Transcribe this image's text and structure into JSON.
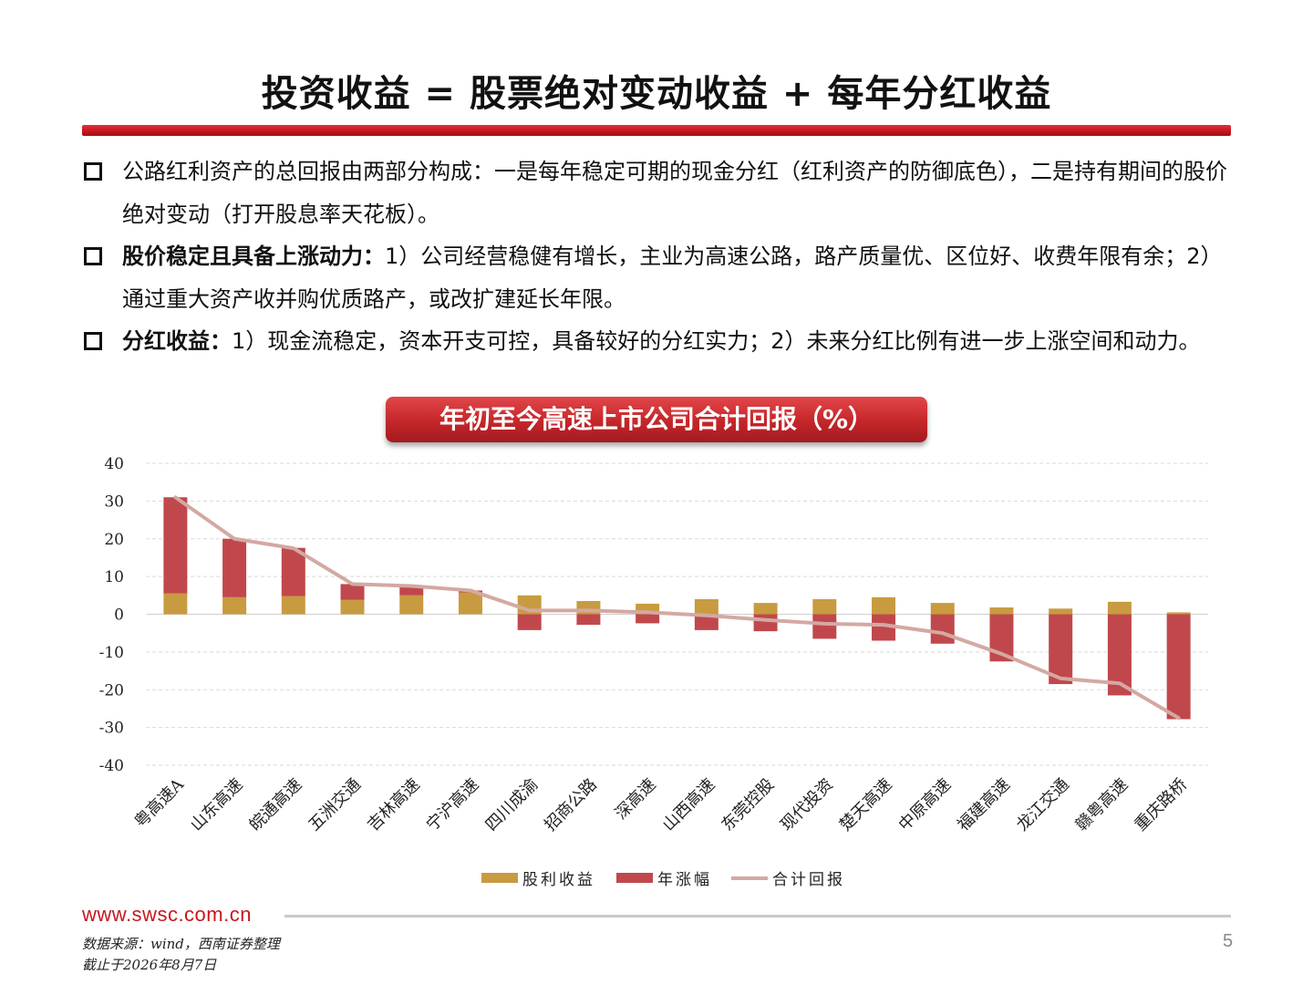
{
  "title": "投资收益 = 股票绝对变动收益 + 每年分红收益",
  "bullets": [
    {
      "bold": "",
      "text": "公路红利资产的总回报由两部分构成：一是每年稳定可期的现金分红（红利资产的防御底色），二是持有期间的股价绝对变动（打开股息率天花板）。"
    },
    {
      "bold": "股价稳定且具备上涨动力：",
      "text": "1）公司经营稳健有增长，主业为高速公路，路产质量优、区位好、收费年限有余；2）通过重大资产收并购优质路产，或改扩建延长年限。"
    },
    {
      "bold": "分红收益：",
      "text": "1）现金流稳定，资本开支可控，具备较好的分红实力；2）未来分红比例有进一步上涨空间和动力。"
    }
  ],
  "chart_banner": "年初至今高速上市公司合计回报（%）",
  "chart_data": {
    "type": "bar",
    "stacked": true,
    "categories": [
      "粤高速A",
      "山东高速",
      "皖通高速",
      "五洲交通",
      "吉林高速",
      "宁沪高速",
      "四川成渝",
      "招商公路",
      "深高速",
      "山西高速",
      "东莞控股",
      "现代投资",
      "楚天高速",
      "中原高速",
      "福建高速",
      "龙江交通",
      "赣粤高速",
      "重庆路桥"
    ],
    "series": [
      {
        "name": "股利收益",
        "type": "bar",
        "color": "#c89b40",
        "values": [
          5.5,
          4.5,
          4.8,
          3.8,
          5.0,
          5.8,
          5.0,
          3.5,
          2.8,
          4.0,
          3.0,
          4.0,
          4.5,
          3.0,
          1.8,
          1.5,
          3.3,
          0.5
        ]
      },
      {
        "name": "年涨幅",
        "type": "bar",
        "color": "#c0484c",
        "values": [
          25.5,
          15.5,
          12.8,
          4.2,
          2.5,
          0.5,
          -4.2,
          -2.8,
          -2.4,
          -4.2,
          -4.5,
          -6.5,
          -7.0,
          -7.8,
          -12.5,
          -18.5,
          -21.5,
          -27.8
        ]
      },
      {
        "name": "合计回报",
        "type": "line",
        "color": "#d3a9a2",
        "values": [
          31.0,
          20.0,
          17.5,
          8.0,
          7.5,
          6.3,
          1.0,
          1.0,
          0.5,
          -0.3,
          -1.5,
          -2.5,
          -2.8,
          -5.0,
          -10.5,
          -17.0,
          -18.3,
          -27.5
        ]
      }
    ],
    "ylim": [
      -40,
      40
    ],
    "yticks": [
      "40",
      "30",
      "20",
      "10",
      "0",
      "-10",
      "-20",
      "-30",
      "-40"
    ],
    "grid": true,
    "legend": "bottom"
  },
  "footer": {
    "url": "www.swsc.com.cn",
    "source_line1": "数据来源：wind，西南证券整理",
    "source_line2": "截止于2026年8月7日",
    "page_number": "5"
  }
}
